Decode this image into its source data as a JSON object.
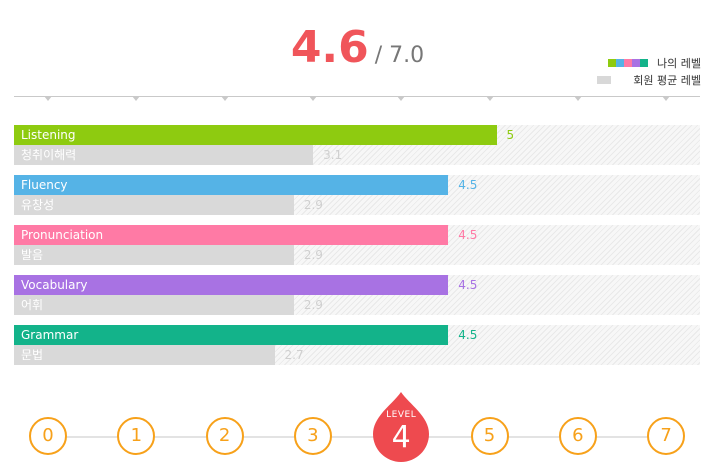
{
  "score": {
    "value": "4.6",
    "max": "/ 7.0"
  },
  "legend": {
    "mine": "나의 레벨",
    "average": "회원 평균 레벨"
  },
  "colors": {
    "listening": "#8ecb10",
    "fluency": "#55b3e6",
    "pronunciation": "#ff7aa5",
    "vocabulary": "#a872e3",
    "grammar": "#13b38a",
    "average": "#d9d9d9",
    "level_ring": "#f7a11a",
    "current_level": "#ee4a4f"
  },
  "chart_data": {
    "type": "bar",
    "orientation": "horizontal",
    "xlim": [
      0,
      7
    ],
    "categories": [
      "Listening",
      "Fluency",
      "Pronunciation",
      "Vocabulary",
      "Grammar"
    ],
    "sub_labels": [
      "청취이해력",
      "유창성",
      "발음",
      "어휘",
      "문법"
    ],
    "series": [
      {
        "name": "나의 레벨",
        "values": [
          5,
          4.5,
          4.5,
          4.5,
          4.5
        ]
      },
      {
        "name": "회원 평균 레벨",
        "values": [
          3.1,
          2.9,
          2.9,
          2.9,
          2.7
        ]
      }
    ],
    "value_labels_mine": [
      "5",
      "4.5",
      "4.5",
      "4.5",
      "4.5"
    ],
    "value_labels_avg": [
      "3.1",
      "2.9",
      "2.9",
      "2.9",
      "2.7"
    ]
  },
  "level_scale": {
    "levels": [
      "0",
      "1",
      "2",
      "3",
      "4",
      "5",
      "6",
      "7"
    ],
    "current_index": 4,
    "current_label": "LEVEL",
    "current_value": "4"
  }
}
